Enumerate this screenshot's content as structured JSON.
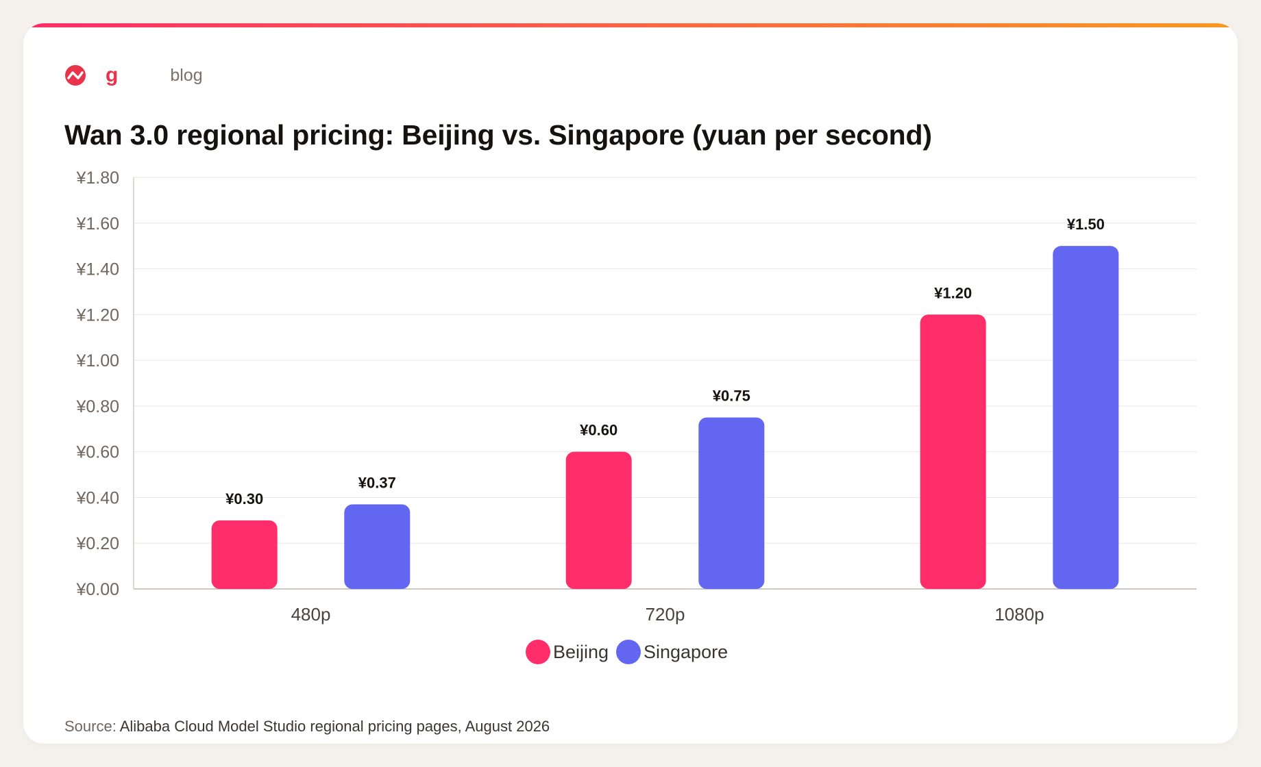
{
  "brand": {
    "letter": "g",
    "section": "blog",
    "icon": "wave-logo-icon"
  },
  "colors": {
    "accent_gradient_start": "#ff2d6a",
    "accent_gradient_end": "#f79a20",
    "beijing": "#ff2d6a",
    "singapore": "#6366f1",
    "brand_red": "#e8334a"
  },
  "chart_data": {
    "type": "bar",
    "title": "Wan 3.0 regional pricing: Beijing vs. Singapore (yuan per second)",
    "categories": [
      "480p",
      "720p",
      "1080p"
    ],
    "series": [
      {
        "name": "Beijing",
        "values": [
          0.3,
          0.6,
          1.2
        ],
        "labels": [
          "¥0.30",
          "¥0.60",
          "¥1.20"
        ]
      },
      {
        "name": "Singapore",
        "values": [
          0.37,
          0.75,
          1.5
        ],
        "labels": [
          "¥0.37",
          "¥0.75",
          "¥1.50"
        ]
      }
    ],
    "ylim": [
      0,
      1.8
    ],
    "yticks": [
      0,
      0.2,
      0.4,
      0.6,
      0.8,
      1.0,
      1.2,
      1.4,
      1.6,
      1.8
    ],
    "ytick_labels": [
      "¥0.00",
      "¥0.20",
      "¥0.40",
      "¥0.60",
      "¥0.80",
      "¥1.00",
      "¥1.20",
      "¥1.40",
      "¥1.60",
      "¥1.80"
    ],
    "xlabel": "",
    "ylabel": "",
    "grid": true,
    "legend": "bottom-center"
  },
  "source": {
    "prefix": "Source:",
    "text": "Alibaba Cloud Model Studio regional pricing pages, August 2026"
  }
}
